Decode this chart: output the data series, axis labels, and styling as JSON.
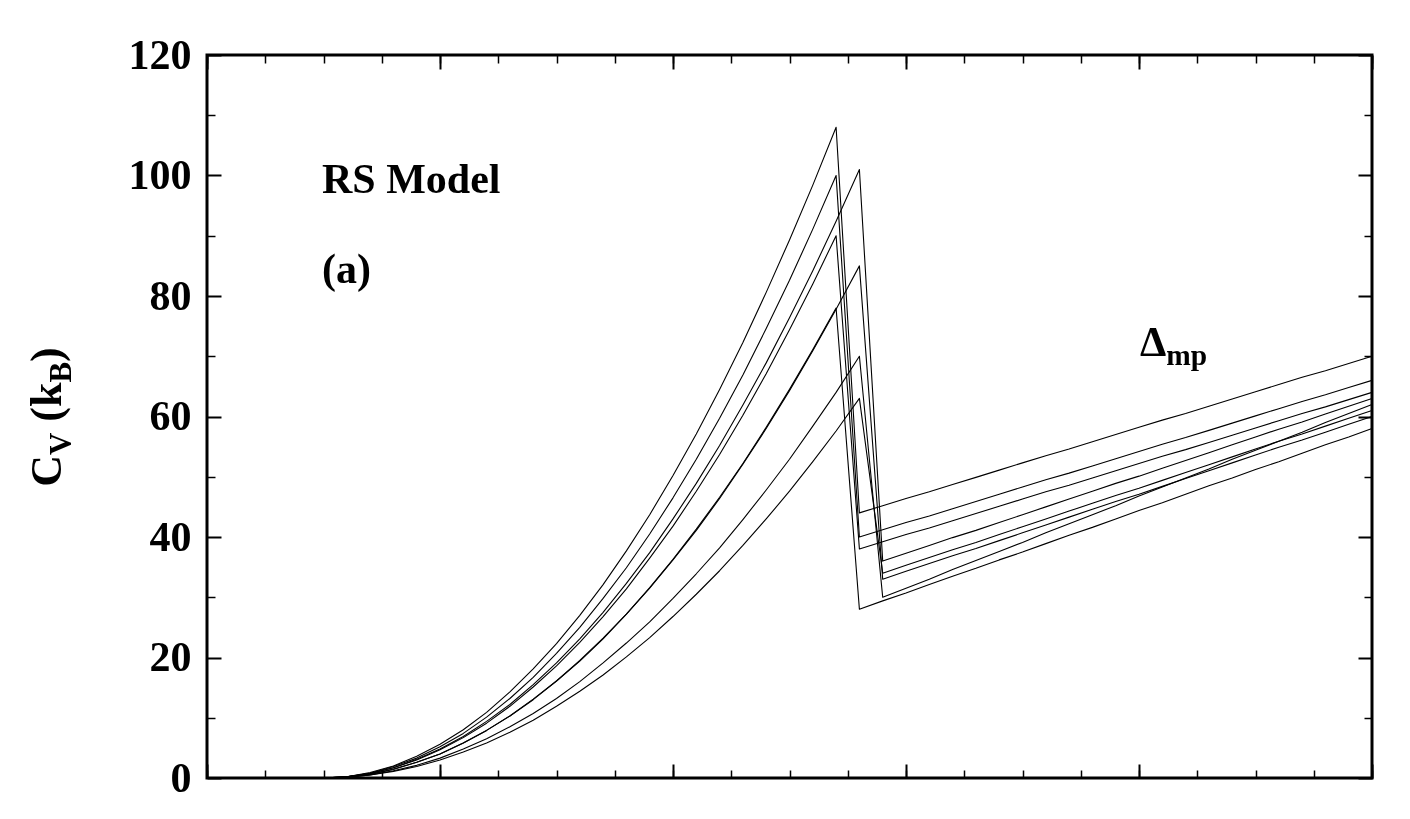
{
  "chart_data": {
    "type": "line",
    "ylabel": "C$_{V}$ (k$_{B}$)",
    "annotations": [
      "RS Model",
      "(a)",
      "Δ$_{mp}$"
    ],
    "categories": [
      null,
      null,
      null,
      null,
      null,
      null,
      null,
      null,
      null,
      null,
      null,
      null,
      null,
      null,
      null,
      null,
      null,
      null,
      null,
      null,
      null,
      null,
      null,
      null,
      null,
      null,
      null,
      null,
      null,
      null,
      null,
      null,
      null,
      null,
      null,
      null,
      null,
      null,
      null,
      null,
      null,
      null,
      null,
      null,
      null,
      null,
      null,
      null,
      null,
      null,
      null
    ],
    "ylim": [
      0,
      120
    ],
    "yticks": [
      0,
      20,
      40,
      60,
      80,
      100,
      120
    ],
    "grid": false,
    "legend": false,
    "tick_labels": "y",
    "marker": "none",
    "line_style": "solid",
    "series": [
      {
        "color": "#000000",
        "values": [
          0,
          0,
          0,
          0,
          0,
          0,
          0.2,
          0.9,
          2.0,
          3.6,
          5.6,
          8.0,
          10.9,
          14.3,
          18.1,
          22.3,
          27.0,
          32.1,
          37.7,
          43.7,
          50.2,
          57.1,
          64.5,
          72.3,
          80.6,
          89.3,
          98.4,
          108,
          44,
          45.2,
          46.4,
          47.5,
          48.7,
          49.9,
          51.1,
          52.3,
          53.5,
          54.6,
          55.8,
          57.0,
          58.2,
          59.4,
          60.5,
          61.7,
          62.9,
          64.1,
          65.3,
          66.5,
          67.6,
          68.8,
          70
        ]
      },
      {
        "color": "#000000",
        "values": [
          0,
          0,
          0,
          0,
          0,
          0,
          0.2,
          0.8,
          1.9,
          3.3,
          5.2,
          7.4,
          10.1,
          13.2,
          16.7,
          20.7,
          25.0,
          29.8,
          34.9,
          40.5,
          46.5,
          52.9,
          59.7,
          66.9,
          74.6,
          82.6,
          91.1,
          100,
          40,
          41.2,
          42.4,
          43.5,
          44.7,
          45.9,
          47.1,
          48.3,
          49.5,
          50.6,
          51.8,
          53.0,
          54.2,
          55.4,
          56.5,
          57.7,
          58.9,
          60.1,
          61.3,
          62.5,
          63.6,
          64.8,
          66
        ]
      },
      {
        "color": "#000000",
        "values": [
          0,
          0,
          0,
          0,
          0,
          0,
          0.2,
          0.8,
          1.7,
          3.1,
          4.8,
          6.9,
          9.4,
          12.2,
          15.5,
          19.1,
          23.1,
          27.5,
          32.3,
          37.4,
          43.0,
          48.9,
          55.2,
          61.9,
          68.9,
          76.4,
          84.2,
          92.4,
          101,
          36,
          37.3,
          38.6,
          39.9,
          41.1,
          42.4,
          43.7,
          45.0,
          46.3,
          47.6,
          48.9,
          50.1,
          51.4,
          52.7,
          54.0,
          55.3,
          56.6,
          57.9,
          59.1,
          60.4,
          61.7,
          63
        ]
      },
      {
        "color": "#000000",
        "values": [
          0,
          0,
          0,
          0,
          0,
          0,
          0.2,
          0.7,
          1.7,
          3.0,
          4.7,
          6.7,
          9.1,
          11.9,
          15.1,
          18.6,
          22.5,
          26.8,
          31.4,
          36.5,
          41.8,
          47.6,
          53.7,
          60.2,
          67.1,
          74.4,
          82.0,
          90,
          38,
          39.2,
          40.4,
          41.5,
          42.7,
          43.9,
          45.1,
          46.3,
          47.5,
          48.6,
          49.8,
          51.0,
          52.2,
          53.4,
          54.5,
          55.7,
          56.9,
          58.1,
          59.3,
          60.5,
          61.6,
          62.8,
          64
        ]
      },
      {
        "color": "#000000",
        "values": [
          0,
          0,
          0,
          0,
          0,
          0,
          0.2,
          0.6,
          1.4,
          2.6,
          4.0,
          5.8,
          7.9,
          10.3,
          13.0,
          16.1,
          19.4,
          23.1,
          27.2,
          31.5,
          36.2,
          41.1,
          46.4,
          52.1,
          58.0,
          64.3,
          70.9,
          77.8,
          85,
          33,
          34.3,
          35.6,
          36.9,
          38.1,
          39.4,
          40.7,
          42.0,
          43.3,
          44.6,
          45.9,
          47.1,
          48.4,
          49.7,
          51.0,
          52.3,
          53.6,
          54.9,
          56.1,
          57.4,
          58.7,
          60
        ]
      },
      {
        "color": "#000000",
        "values": [
          0,
          0,
          0,
          0,
          0,
          0,
          0.2,
          0.6,
          1.5,
          2.6,
          4.0,
          5.8,
          7.9,
          10.3,
          13.1,
          16.1,
          19.5,
          23.2,
          27.2,
          31.6,
          36.3,
          41.3,
          46.6,
          52.2,
          58.2,
          64.5,
          71.1,
          78,
          28,
          29.4,
          30.7,
          32.1,
          33.5,
          34.8,
          36.2,
          37.5,
          38.9,
          40.3,
          41.6,
          43.0,
          44.4,
          45.7,
          47.1,
          48.5,
          49.8,
          51.2,
          52.5,
          53.9,
          55.3,
          56.6,
          58
        ]
      },
      {
        "color": "#000000",
        "values": [
          0,
          0,
          0,
          0,
          0,
          0,
          0.1,
          0.5,
          1.2,
          2.1,
          3.3,
          4.8,
          6.5,
          8.5,
          10.7,
          13.2,
          16.0,
          19.1,
          22.4,
          25.9,
          29.8,
          33.9,
          38.2,
          42.9,
          47.8,
          52.9,
          58.4,
          64.0,
          70,
          30,
          31.5,
          33.0,
          34.6,
          36.1,
          37.6,
          39.1,
          40.7,
          42.2,
          43.7,
          45.2,
          46.8,
          48.3,
          49.8,
          51.3,
          52.9,
          54.4,
          55.9,
          57.4,
          59.0,
          60.5,
          62
        ]
      },
      {
        "color": "#000000",
        "values": [
          0,
          0,
          0,
          0,
          0,
          0,
          0.1,
          0.5,
          1.1,
          1.9,
          3.0,
          4.3,
          5.8,
          7.6,
          9.6,
          11.9,
          14.4,
          17.1,
          20.1,
          23.3,
          26.8,
          30.5,
          34.4,
          38.6,
          43.0,
          47.6,
          52.5,
          57.6,
          63,
          34,
          35.3,
          36.6,
          37.9,
          39.1,
          40.4,
          41.7,
          43.0,
          44.3,
          45.6,
          46.9,
          48.1,
          49.4,
          50.7,
          52.0,
          53.3,
          54.6,
          55.9,
          57.1,
          58.4,
          59.7,
          61
        ]
      }
    ]
  }
}
